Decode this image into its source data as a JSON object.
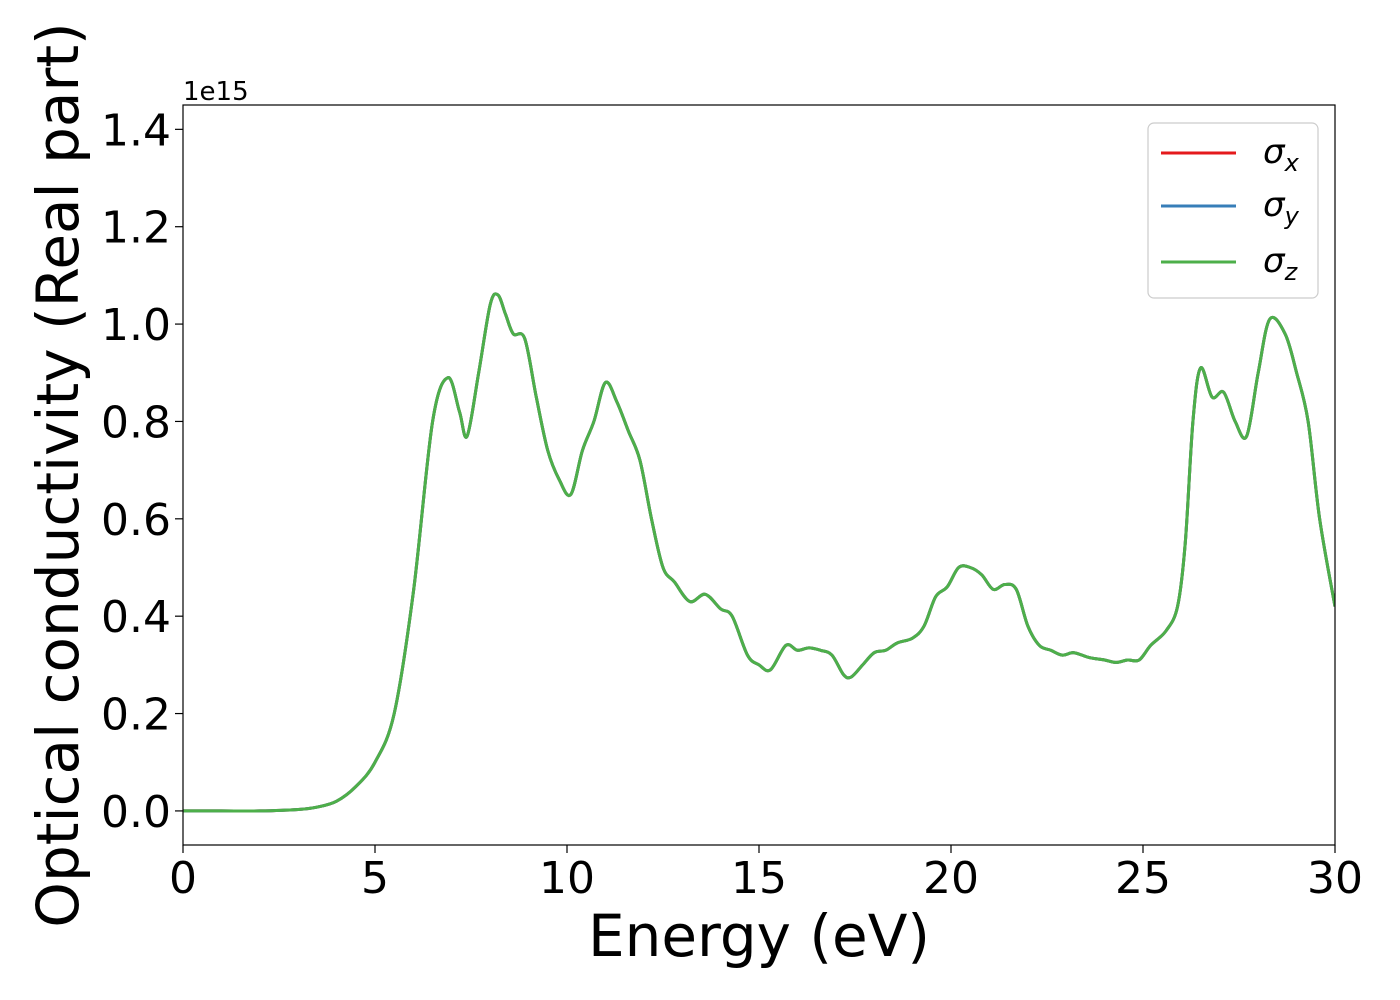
{
  "chart_data": {
    "type": "line",
    "title": "",
    "xlabel": "Energy (eV)",
    "ylabel": "Optical conductivity (Real part)",
    "offset_text": "1e15",
    "xlim": [
      0,
      30
    ],
    "ylim": [
      -0.07,
      1.45
    ],
    "x_ticks": [
      0,
      5,
      10,
      15,
      20,
      25,
      30
    ],
    "y_ticks": [
      0.0,
      0.2,
      0.4,
      0.6,
      0.8,
      1.0,
      1.2,
      1.4
    ],
    "x_tick_labels": [
      "0",
      "5",
      "10",
      "15",
      "20",
      "25",
      "30"
    ],
    "y_tick_labels": [
      "0.0",
      "0.2",
      "0.4",
      "0.6",
      "0.8",
      "1.0",
      "1.2",
      "1.4"
    ],
    "grid": false,
    "legend_position": "top-right",
    "series": [
      {
        "name": "σx",
        "label_base": "σ",
        "label_sub": "x",
        "color": "#e41a1c"
      },
      {
        "name": "σy",
        "label_base": "σ",
        "label_sub": "y",
        "color": "#377eb8"
      },
      {
        "name": "σz",
        "label_base": "σ",
        "label_sub": "z",
        "color": "#4daf4a"
      }
    ],
    "x": [
      0,
      1,
      2,
      3,
      3.5,
      4,
      4.5,
      5,
      5.5,
      6,
      6.5,
      6.9,
      7.2,
      7.4,
      7.7,
      8.0,
      8.2,
      8.4,
      8.6,
      8.9,
      9.2,
      9.5,
      9.8,
      10.1,
      10.4,
      10.7,
      11.0,
      11.3,
      11.6,
      11.9,
      12.2,
      12.5,
      12.8,
      13.2,
      13.6,
      14.0,
      14.3,
      14.7,
      15.0,
      15.3,
      15.7,
      16.0,
      16.3,
      16.6,
      16.9,
      17.2,
      17.4,
      17.7,
      18.0,
      18.3,
      18.6,
      19.0,
      19.3,
      19.6,
      19.9,
      20.2,
      20.5,
      20.8,
      21.1,
      21.4,
      21.7,
      22.0,
      22.3,
      22.6,
      22.9,
      23.2,
      23.6,
      24.0,
      24.3,
      24.6,
      24.9,
      25.2,
      25.6,
      25.9,
      26.1,
      26.3,
      26.5,
      26.8,
      27.1,
      27.4,
      27.7,
      28.0,
      28.3,
      28.7,
      29.0,
      29.3,
      29.6,
      30.0
    ],
    "y": [
      0.0,
      0.0,
      0.0,
      0.003,
      0.008,
      0.02,
      0.05,
      0.1,
      0.2,
      0.45,
      0.8,
      0.89,
      0.82,
      0.77,
      0.9,
      1.04,
      1.06,
      1.02,
      0.98,
      0.97,
      0.85,
      0.74,
      0.68,
      0.65,
      0.74,
      0.8,
      0.88,
      0.84,
      0.78,
      0.72,
      0.6,
      0.5,
      0.47,
      0.43,
      0.445,
      0.415,
      0.4,
      0.32,
      0.3,
      0.29,
      0.34,
      0.33,
      0.335,
      0.33,
      0.32,
      0.28,
      0.275,
      0.3,
      0.325,
      0.33,
      0.345,
      0.355,
      0.38,
      0.44,
      0.46,
      0.5,
      0.5,
      0.485,
      0.455,
      0.465,
      0.455,
      0.38,
      0.34,
      0.33,
      0.32,
      0.325,
      0.315,
      0.31,
      0.305,
      0.31,
      0.31,
      0.34,
      0.37,
      0.42,
      0.55,
      0.8,
      0.91,
      0.85,
      0.86,
      0.8,
      0.77,
      0.9,
      1.01,
      0.98,
      0.9,
      0.8,
      0.6,
      0.42
    ]
  }
}
